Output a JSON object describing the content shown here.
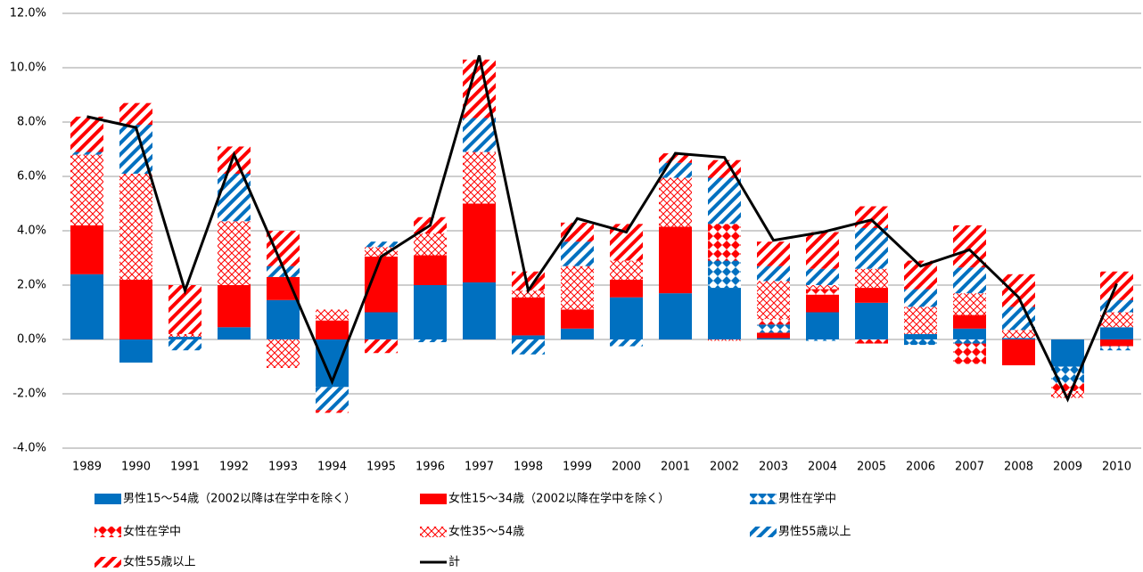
{
  "chart_data": {
    "type": "stacked-bar-line",
    "categories": [
      "1989",
      "1990",
      "1991",
      "1992",
      "1993",
      "1994",
      "1995",
      "1996",
      "1997",
      "1998",
      "1999",
      "2000",
      "2001",
      "2002",
      "2003",
      "2004",
      "2005",
      "2006",
      "2007",
      "2008",
      "2009",
      "2010"
    ],
    "ylim": [
      -4,
      12
    ],
    "yticks": [
      {
        "value": -4,
        "label": "-4.0%"
      },
      {
        "value": -2,
        "label": "-2.0%"
      },
      {
        "value": 0,
        "label": "0.0%"
      },
      {
        "value": 2,
        "label": "2.0%"
      },
      {
        "value": 4,
        "label": "4.0%"
      },
      {
        "value": 6,
        "label": "6.0%"
      },
      {
        "value": 8,
        "label": "8.0%"
      },
      {
        "value": 10,
        "label": "10.0%"
      },
      {
        "value": 12,
        "label": "12.0%"
      }
    ],
    "grid": true,
    "series": [
      {
        "name": "男性15～54歳（2002以降は在学中を除く）",
        "kind": "bar",
        "pattern": "solid",
        "color": "#0070c0",
        "values": [
          2.4,
          -0.85,
          0.1,
          0.45,
          1.45,
          -1.75,
          1.0,
          2.0,
          2.1,
          0.15,
          0.4,
          1.55,
          1.7,
          1.9,
          0.05,
          1.0,
          1.35,
          0.2,
          0.4,
          0.05,
          -1.0,
          0.45
        ]
      },
      {
        "name": "女性15～34歳（2002以降在学中を除く）",
        "kind": "bar",
        "pattern": "solid",
        "color": "#ff0000",
        "values": [
          1.8,
          2.2,
          0,
          1.55,
          0.85,
          0.7,
          2.05,
          1.1,
          2.9,
          1.4,
          0.7,
          0.65,
          2.45,
          0,
          0.2,
          0.65,
          0.55,
          0,
          0.5,
          -0.95,
          0,
          -0.25
        ]
      },
      {
        "name": "男性在学中",
        "kind": "bar",
        "pattern": "diamond",
        "color": "#0070c0",
        "values": [
          0,
          0,
          0,
          0,
          0,
          0,
          0,
          0,
          0,
          0,
          0,
          0,
          0,
          1.0,
          0.3,
          -0.05,
          0,
          -0.2,
          -0.15,
          0,
          -0.6,
          -0.15
        ]
      },
      {
        "name": "女性在学中",
        "kind": "bar",
        "pattern": "diamond",
        "color": "#ff0000",
        "values": [
          0,
          0,
          0,
          0,
          0,
          0,
          0,
          0,
          0,
          0,
          0,
          0,
          0,
          1.35,
          0.2,
          0.2,
          -0.15,
          0,
          -0.75,
          0,
          -0.3,
          0
        ]
      },
      {
        "name": "女性35～54歳",
        "kind": "bar",
        "pattern": "crosshatch",
        "color": "#ff0000",
        "values": [
          2.6,
          3.9,
          0.1,
          2.35,
          -1.05,
          0.4,
          0.35,
          0.8,
          1.9,
          0.25,
          1.6,
          0.7,
          1.8,
          -0.05,
          1.4,
          0.15,
          0.7,
          1.0,
          0.8,
          0.3,
          -0.25,
          0.55
        ]
      },
      {
        "name": "男性55歳以上",
        "kind": "bar",
        "pattern": "stripe",
        "color": "#0070c0",
        "values": [
          0.1,
          1.8,
          -0.4,
          1.75,
          0.4,
          -0.85,
          0.2,
          -0.1,
          1.25,
          -0.55,
          0.9,
          -0.25,
          0.55,
          1.7,
          0.55,
          0.6,
          1.5,
          0.65,
          0.95,
          0.85,
          0,
          0.45
        ]
      },
      {
        "name": "女性55歳以上",
        "kind": "bar",
        "pattern": "stripe",
        "color": "#ff0000",
        "values": [
          1.3,
          0.8,
          1.8,
          1.0,
          1.3,
          -0.1,
          -0.5,
          0.6,
          2.15,
          0.7,
          0.7,
          1.35,
          0.35,
          0.65,
          0.9,
          1.35,
          0.8,
          1.05,
          1.55,
          1.2,
          0,
          1.05
        ]
      },
      {
        "name": "計",
        "kind": "line",
        "color": "#000000",
        "values": [
          8.2,
          7.8,
          1.8,
          6.8,
          2.65,
          -1.55,
          3.05,
          4.2,
          10.45,
          1.8,
          4.45,
          3.95,
          6.85,
          6.7,
          3.65,
          3.95,
          4.4,
          2.7,
          3.3,
          1.55,
          -2.2,
          2.05
        ]
      }
    ]
  }
}
